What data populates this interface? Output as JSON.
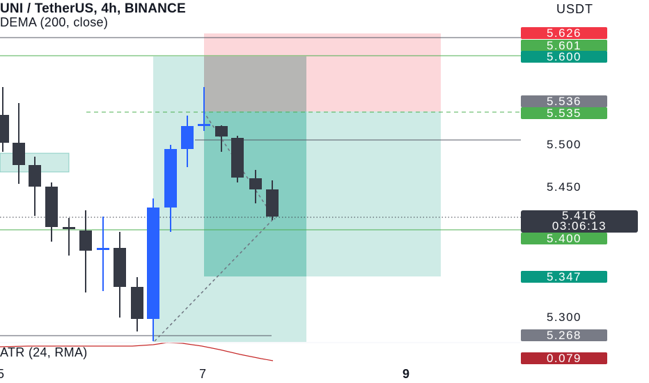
{
  "header": {
    "symbol_line": "UNI / TetherUS, 4h, BINANCE",
    "indicator_line": "DEMA (200, close)"
  },
  "price_scale": {
    "currency": "USDT",
    "tags": [
      {
        "label": "5.626",
        "color": "#f23645"
      },
      {
        "label": "5.601",
        "color": "#4caf50"
      },
      {
        "label": "5.600",
        "color": "#089981"
      },
      {
        "label": "5.536",
        "color": "#787b86"
      },
      {
        "label": "5.535",
        "color": "#4caf50"
      },
      {
        "label": "5.400",
        "color": "#4caf50"
      },
      {
        "label": "5.347",
        "color": "#089981"
      },
      {
        "label": "5.268",
        "color": "#787b86"
      }
    ],
    "plain_levels": [
      "5.500",
      "5.450",
      "5.300"
    ],
    "last_price": {
      "price": "5.416",
      "countdown": "03:06:13",
      "color": "#363a45"
    },
    "atr_value": {
      "label": "0.079",
      "color": "#b22833"
    }
  },
  "time_axis": {
    "labels": [
      "5",
      "7",
      "9"
    ]
  },
  "indicator_pane": {
    "label": "ATR (24, RMA)"
  },
  "colors": {
    "up_candle": "#2962ff",
    "down_candle": "#363a45",
    "profit_zone": "#089981",
    "loss_zone": "#f23645",
    "atr_line": "#c62828"
  }
}
